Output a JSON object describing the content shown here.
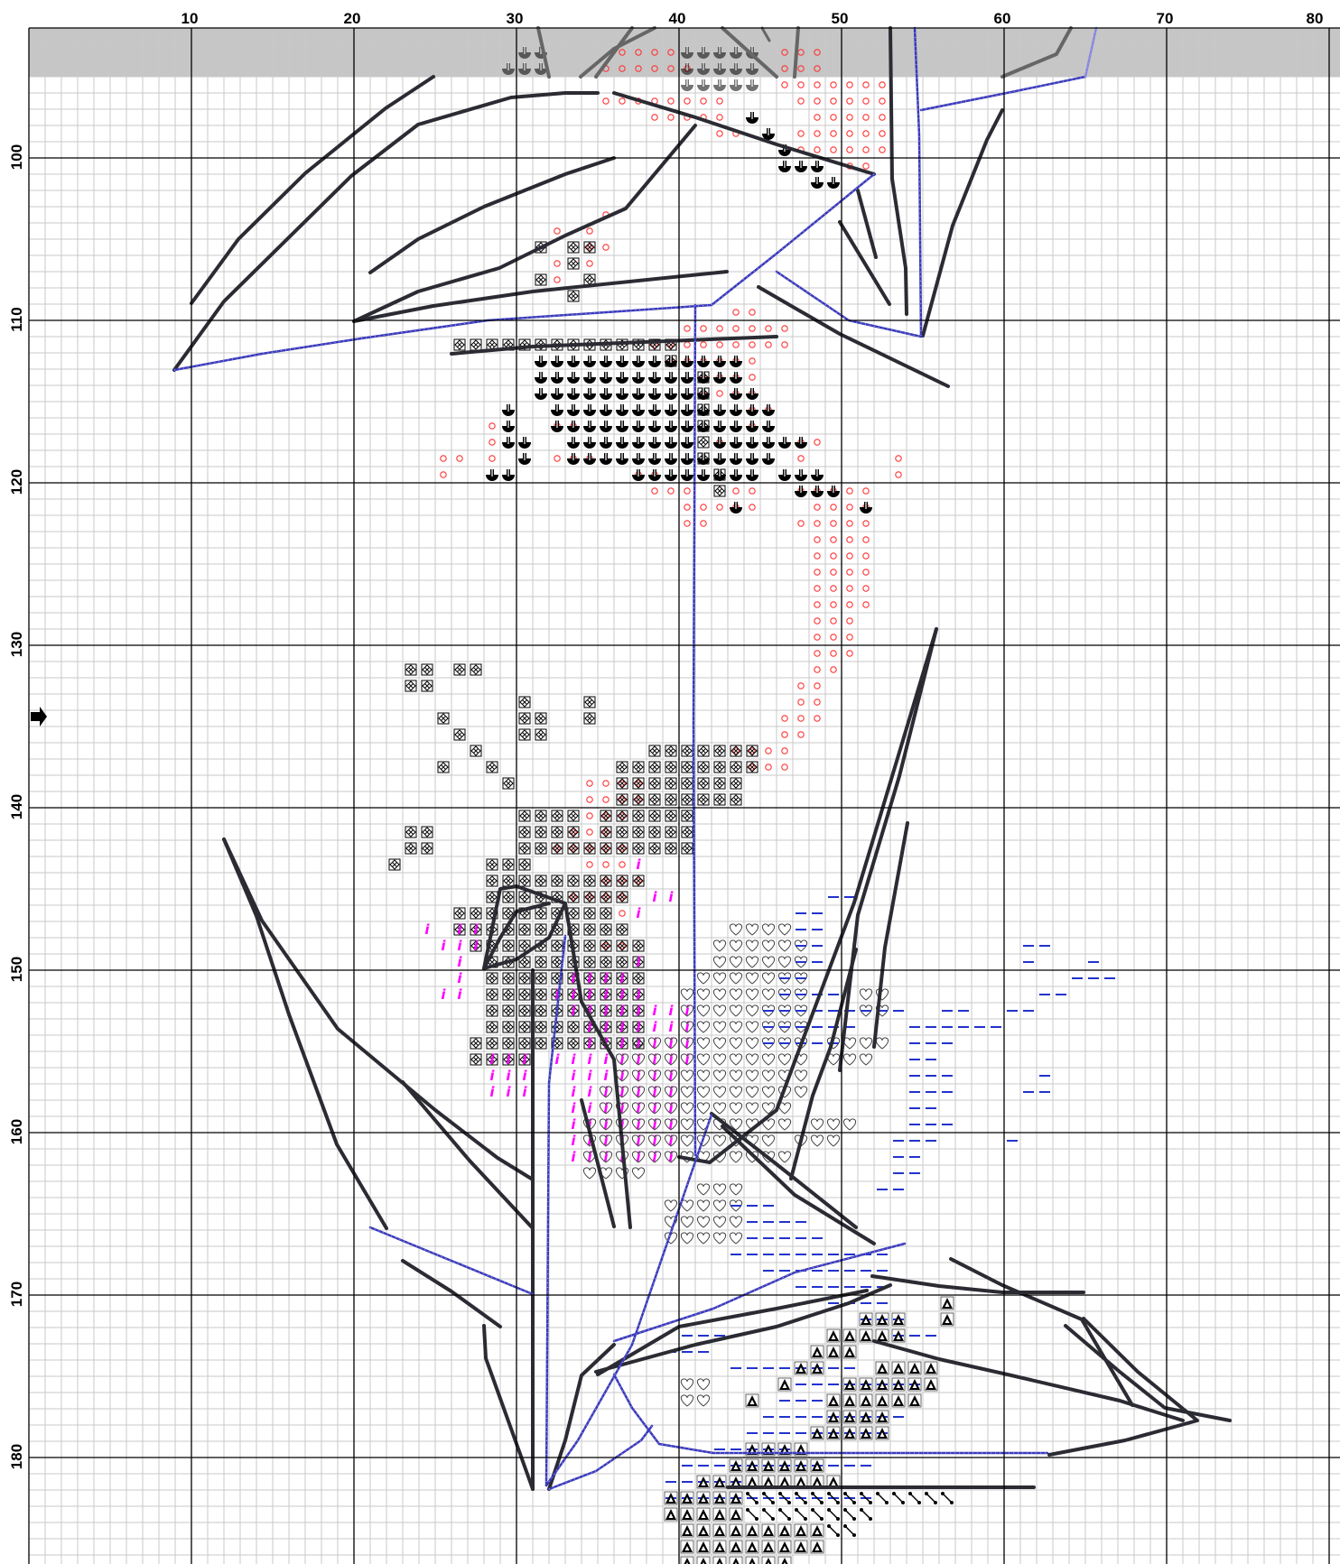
{
  "chart_header": {
    "column_labels": [
      "10",
      "20",
      "30",
      "40",
      "50",
      "60",
      "70",
      "80"
    ],
    "row_labels": [
      "100",
      "110",
      "120",
      "130",
      "140",
      "150",
      "160",
      "170",
      "180"
    ]
  },
  "grid": {
    "first_column": 1,
    "first_row": 92,
    "minor_line_color": "#c8c8c8",
    "major_line_color": "#000000",
    "shaded_band_color": "#c6c6c6"
  },
  "center_marker": {
    "icon": "arrow-right-icon",
    "row": 135
  },
  "symbol_legend": {
    "anchor": {
      "icon": "anchor-glyph",
      "color": "#000000"
    },
    "circle": {
      "icon": "small-circle-glyph",
      "color": "#ff3333"
    },
    "diamond": {
      "icon": "boxed-diamond-glyph",
      "color": "#000000"
    },
    "italic_i": {
      "icon": "italic-i-glyph",
      "color": "#ff00ff"
    },
    "heart": {
      "icon": "heart-outline-glyph",
      "color": "#444444"
    },
    "dash": {
      "icon": "dash-glyph",
      "color": "#2233cc"
    },
    "triangle": {
      "icon": "filled-triangle-glyph",
      "color": "#000000"
    },
    "diagonal": {
      "icon": "diagonal-dots-glyph",
      "color": "#000000"
    }
  },
  "backstitch_colors": {
    "dark": "#2b2b33",
    "blue": "#3a3ab8"
  }
}
